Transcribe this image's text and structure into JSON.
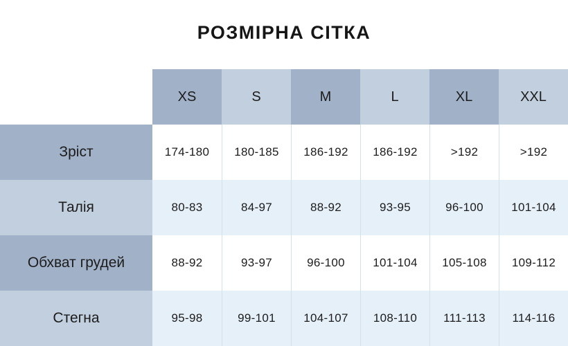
{
  "title": "РОЗМІРНА СІТКА",
  "colors": {
    "header_dark": "#a0b1c8",
    "header_light": "#c2cfde",
    "row_white": "#ffffff",
    "row_tint": "#e6f0f9",
    "separator": "#d3dfe9",
    "text": "#1c1c1c"
  },
  "chart_data": {
    "type": "table",
    "title": "РОЗМІРНА СІТКА",
    "columns": [
      "XS",
      "S",
      "M",
      "L",
      "XL",
      "XXL"
    ],
    "rows": [
      {
        "label": "Зріст",
        "values": [
          "174-180",
          "180-185",
          "186-192",
          "186-192",
          ">192",
          ">192"
        ]
      },
      {
        "label": "Талія",
        "values": [
          "80-83",
          "84-97",
          "88-92",
          "93-95",
          "96-100",
          "101-104"
        ]
      },
      {
        "label": "Обхват грудей",
        "values": [
          "88-92",
          "93-97",
          "96-100",
          "101-104",
          "105-108",
          "109-112"
        ]
      },
      {
        "label": "Стегна",
        "values": [
          "95-98",
          "99-101",
          "104-107",
          "108-110",
          "111-113",
          "114-116"
        ]
      }
    ]
  }
}
